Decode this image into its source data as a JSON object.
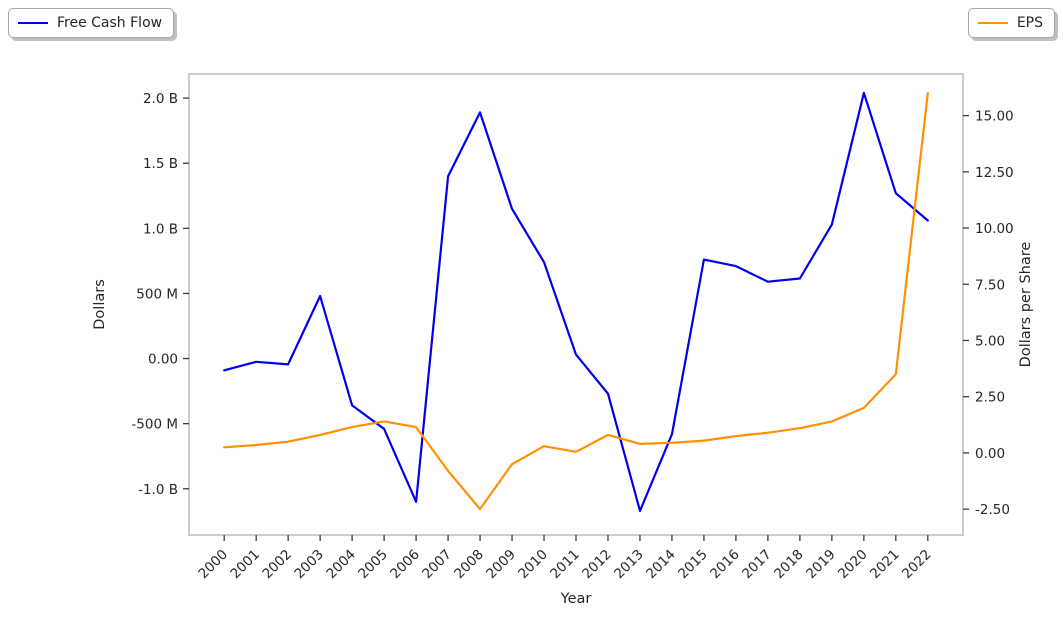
{
  "chart_data": {
    "type": "line",
    "x_years": [
      "2000",
      "2001",
      "2002",
      "2003",
      "2004",
      "2005",
      "2006",
      "2007",
      "2008",
      "2009",
      "2010",
      "2011",
      "2012",
      "2013",
      "2014",
      "2015",
      "2016",
      "2017",
      "2018",
      "2019",
      "2020",
      "2021",
      "2022"
    ],
    "series": [
      {
        "name": "Free Cash Flow",
        "axis": "left",
        "color": "#0000ee",
        "units": "millions of dollars",
        "values": [
          -90,
          -25,
          -45,
          480,
          -360,
          -540,
          -1100,
          1400,
          1890,
          1150,
          740,
          30,
          -270,
          -1170,
          -580,
          760,
          710,
          590,
          615,
          1030,
          2040,
          1270,
          1060
        ]
      },
      {
        "name": "EPS",
        "axis": "right",
        "color": "#ff9100",
        "units": "dollars per share",
        "values": [
          0.25,
          0.35,
          0.5,
          0.8,
          1.15,
          1.4,
          1.15,
          -0.8,
          -2.5,
          -0.5,
          0.3,
          0.05,
          0.8,
          0.4,
          0.45,
          0.55,
          0.75,
          0.9,
          1.1,
          1.4,
          2.0,
          3.5,
          16.0
        ]
      }
    ],
    "xlabel": "Year",
    "ylabel_left": "Dollars",
    "ylabel_right": "Dollars per Share",
    "left_ticks": [
      {
        "label": "2.0 B",
        "value": 2000
      },
      {
        "label": "1.5 B",
        "value": 1500
      },
      {
        "label": "1.0 B",
        "value": 1000
      },
      {
        "label": "500 M",
        "value": 500
      },
      {
        "label": "0.00",
        "value": 0
      },
      {
        "label": "-500 M",
        "value": -500
      },
      {
        "label": "-1.0 B",
        "value": -1000
      }
    ],
    "right_ticks": [
      {
        "label": "15.00",
        "value": 15
      },
      {
        "label": "12.50",
        "value": 12.5
      },
      {
        "label": "10.00",
        "value": 10
      },
      {
        "label": "7.50",
        "value": 7.5
      },
      {
        "label": "5.00",
        "value": 5
      },
      {
        "label": "2.50",
        "value": 2.5
      },
      {
        "label": "0.00",
        "value": 0
      },
      {
        "label": "-2.50",
        "value": -2.5
      }
    ],
    "ylim_left_millions": [
      -1355,
      2185
    ],
    "ylim_right": [
      -3.65,
      16.85
    ],
    "xlim_index": [
      -1.1,
      23.1
    ],
    "x_tick_rotation_deg": 45,
    "grid": false,
    "legend_left_label": "Free Cash Flow",
    "legend_right_label": "EPS",
    "legend_position": "top-left and top-right of figure, outside plot area"
  },
  "styles": {
    "background": "#ffffff",
    "spine_color": "#cccccc",
    "tick_mark_color": "#3a3a3a",
    "text_color": "#262626",
    "fcf_line_color": "#0000ee",
    "eps_line_color": "#ff9100"
  }
}
